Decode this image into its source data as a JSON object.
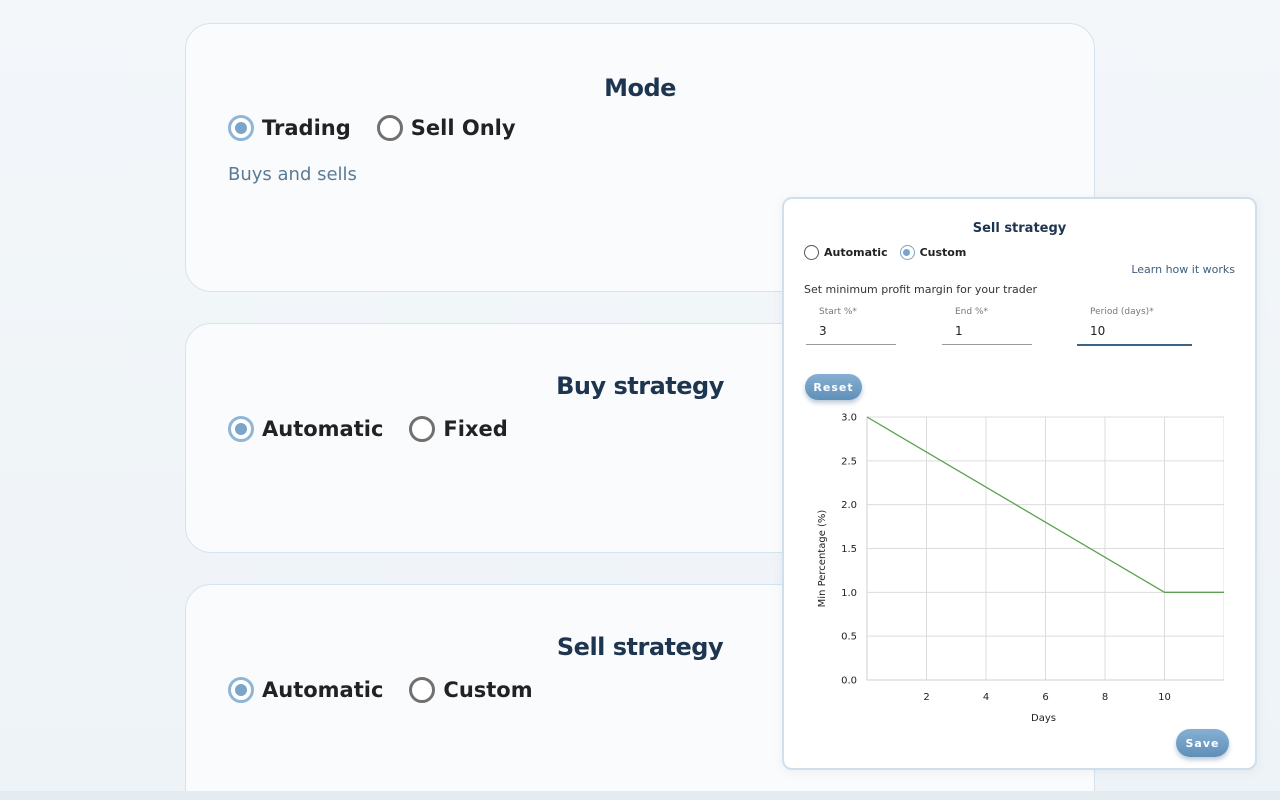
{
  "mode_card": {
    "title": "Mode",
    "options": [
      {
        "label": "Trading",
        "selected": true
      },
      {
        "label": "Sell Only",
        "selected": false
      }
    ],
    "description": "Buys and sells"
  },
  "buy_card": {
    "title": "Buy strategy",
    "options": [
      {
        "label": "Automatic",
        "selected": true
      },
      {
        "label": "Fixed",
        "selected": false
      }
    ]
  },
  "sell_card": {
    "title": "Sell strategy",
    "options": [
      {
        "label": "Automatic",
        "selected": true
      },
      {
        "label": "Custom",
        "selected": false
      }
    ]
  },
  "panel": {
    "title": "Sell strategy",
    "options": [
      {
        "label": "Automatic",
        "selected": false
      },
      {
        "label": "Custom",
        "selected": true
      }
    ],
    "learn_link": "Learn how it works",
    "hint": "Set minimum profit margin for your trader",
    "fields": {
      "start": {
        "label": "Start %*",
        "value": "3"
      },
      "end": {
        "label": "End %*",
        "value": "1"
      },
      "period": {
        "label": "Period (days)*",
        "value": "10"
      }
    },
    "reset_label": "Reset",
    "save_label": "Save"
  },
  "chart_data": {
    "type": "line",
    "xlabel": "Days",
    "ylabel": "Min Percentage (%)",
    "x_ticks": [
      2,
      4,
      6,
      8,
      10
    ],
    "y_ticks": [
      "0.0",
      "0.5",
      "1.0",
      "1.5",
      "2.0",
      "2.5",
      "3.0"
    ],
    "xlim": [
      0,
      12
    ],
    "ylim": [
      0,
      3
    ],
    "grid": true,
    "series": [
      {
        "x": [
          0,
          10,
          12
        ],
        "y": [
          3,
          1,
          1
        ],
        "color": "#5aa24f"
      }
    ]
  }
}
